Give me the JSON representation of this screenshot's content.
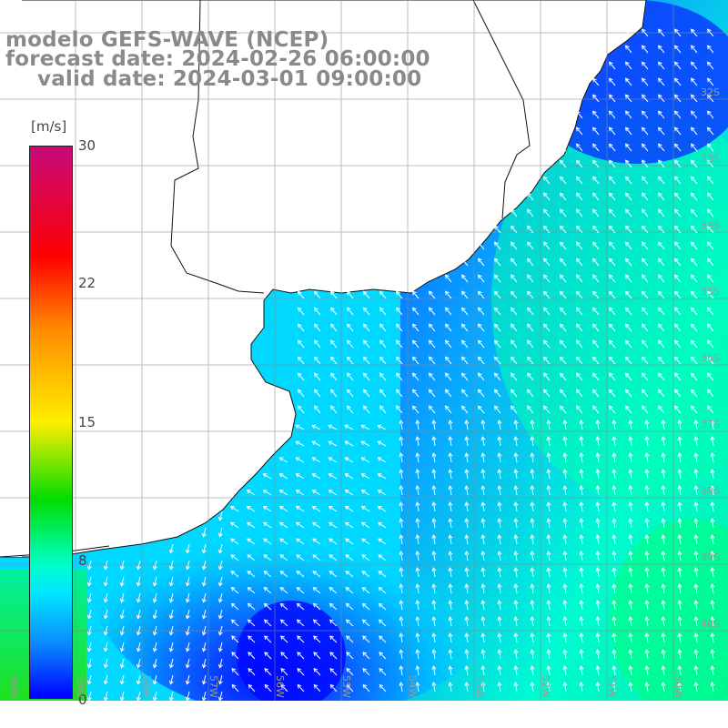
{
  "title": {
    "line1": "modelo GEFS-WAVE (NCEP)",
    "line2": "forecast date: 2024-02-26 06:00:00",
    "line3": "valid date: 2024-03-01 09:00:00"
  },
  "colorbar": {
    "unit": "[m/s]",
    "ticks": [
      "30",
      "22",
      "15",
      "8",
      "0"
    ],
    "min": 0,
    "max": 30,
    "colors": {
      "max": "#c60a7a",
      "red": "#ff0000",
      "orange": "#ff8a00",
      "yellow": "#ffee00",
      "green": "#00dd00",
      "cyan": "#00e6ff",
      "blue": "#0000ff"
    }
  },
  "grid": {
    "lat_labels": [
      "32S",
      "33S",
      "34S",
      "35S",
      "36S",
      "37S",
      "38S",
      "39S",
      "40S"
    ],
    "lon_labels": [
      "60W",
      "59W",
      "58W",
      "57W",
      "56W",
      "55W",
      "54W",
      "53W",
      "52W",
      "51W",
      "50W"
    ]
  },
  "field": {
    "variable": "wind speed",
    "range_shown_m_s": [
      2,
      14
    ]
  }
}
